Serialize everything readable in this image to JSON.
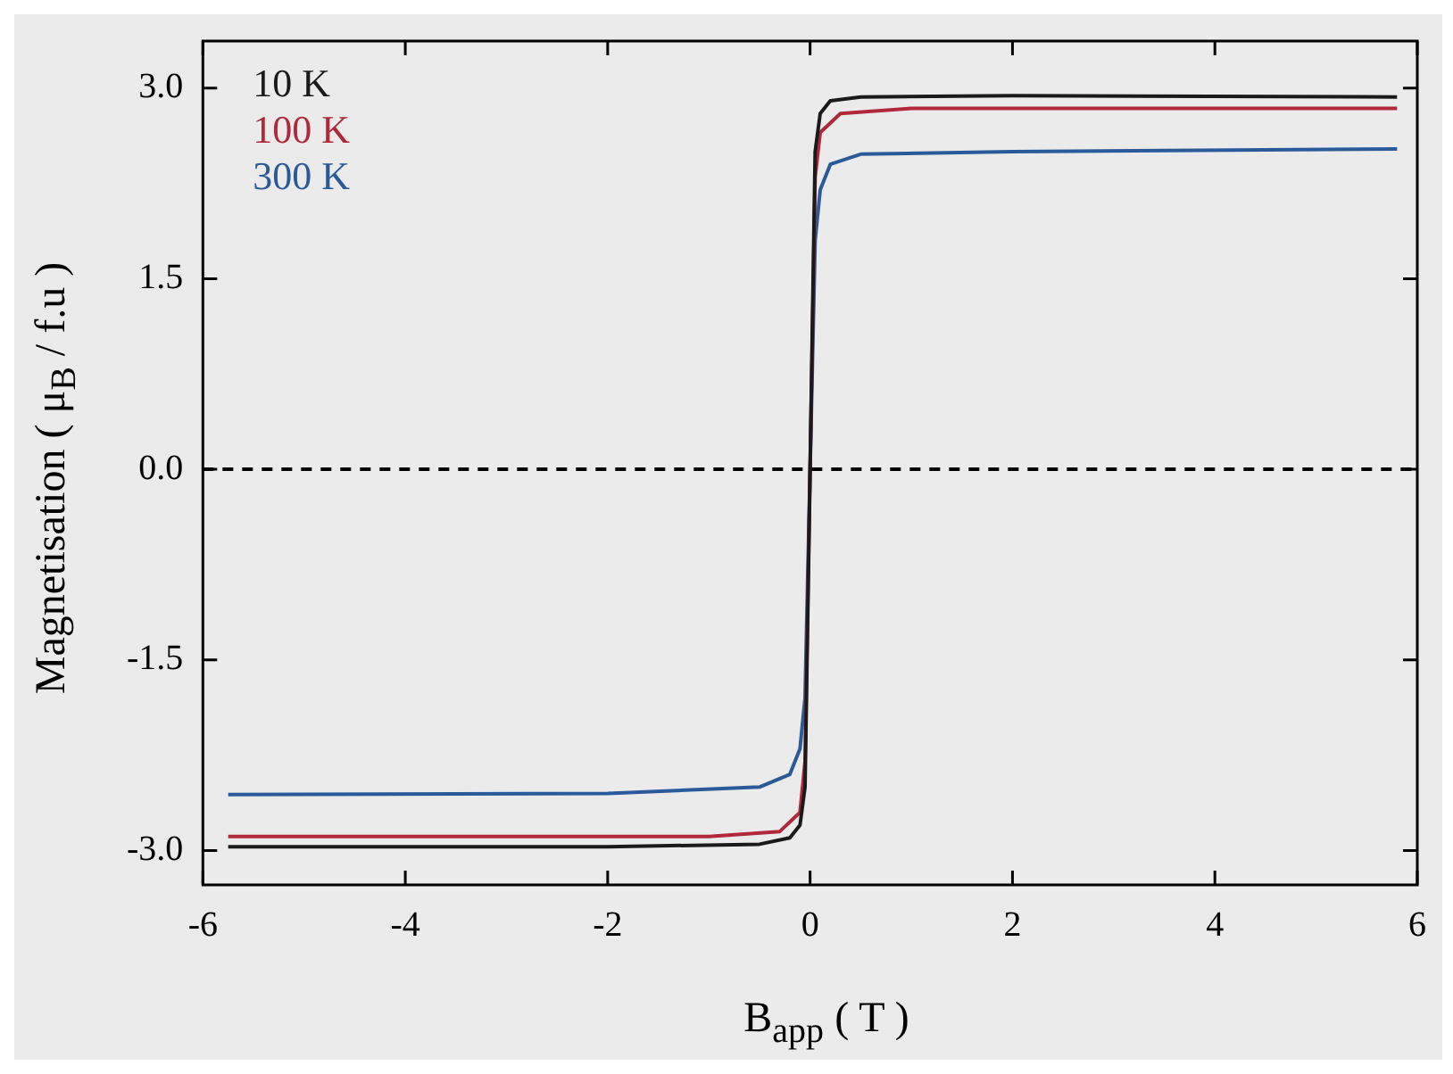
{
  "chart_data": {
    "type": "line",
    "xlabel": "B$_{app}$  ( T )",
    "ylabel": "Magnetisation  ( μ$_{B}$ / f.u )",
    "xlim": [
      -6,
      6
    ],
    "ylim": [
      -3.27,
      3.37
    ],
    "xticks": [
      -6,
      -4,
      -2,
      0,
      2,
      4,
      6
    ],
    "yticks": [
      {
        "value": -3,
        "label": "-3.0"
      },
      {
        "value": -1.5,
        "label": "-1.5"
      },
      {
        "value": 0,
        "label": "0.0"
      },
      {
        "value": 1.5,
        "label": "1.5"
      },
      {
        "value": 3,
        "label": "3.0"
      }
    ],
    "legend": "top left",
    "marker": "none",
    "line_style": "solid",
    "ref_lines": [
      {
        "axis": "y",
        "value": 0,
        "label": null,
        "color": "#000000",
        "line_style": "dashed"
      }
    ],
    "series": [
      {
        "name": "10 K",
        "color": "#1a1a1a",
        "x": [
          -5.75,
          -2,
          -0.5,
          -0.2,
          -0.1,
          -0.05,
          0,
          0.05,
          0.1,
          0.2,
          0.5,
          2,
          5.8
        ],
        "values": [
          -2.97,
          -2.97,
          -2.95,
          -2.9,
          -2.8,
          -2.5,
          0,
          2.5,
          2.8,
          2.9,
          2.93,
          2.94,
          2.93
        ]
      },
      {
        "name": "100 K",
        "color": "#b0283a",
        "x": [
          -5.75,
          -1,
          -0.3,
          -0.1,
          -0.05,
          0,
          0.05,
          0.1,
          0.3,
          1,
          5.8
        ],
        "values": [
          -2.89,
          -2.89,
          -2.85,
          -2.7,
          -2.3,
          0,
          2.3,
          2.65,
          2.8,
          2.84,
          2.84
        ]
      },
      {
        "name": "300 K",
        "color": "#2a5a9a",
        "x": [
          -5.75,
          -2,
          -0.5,
          -0.2,
          -0.1,
          -0.05,
          0,
          0.05,
          0.1,
          0.2,
          0.5,
          2,
          5.8
        ],
        "values": [
          -2.56,
          -2.55,
          -2.5,
          -2.4,
          -2.2,
          -1.8,
          0,
          1.8,
          2.2,
          2.4,
          2.48,
          2.5,
          2.52
        ]
      }
    ]
  }
}
